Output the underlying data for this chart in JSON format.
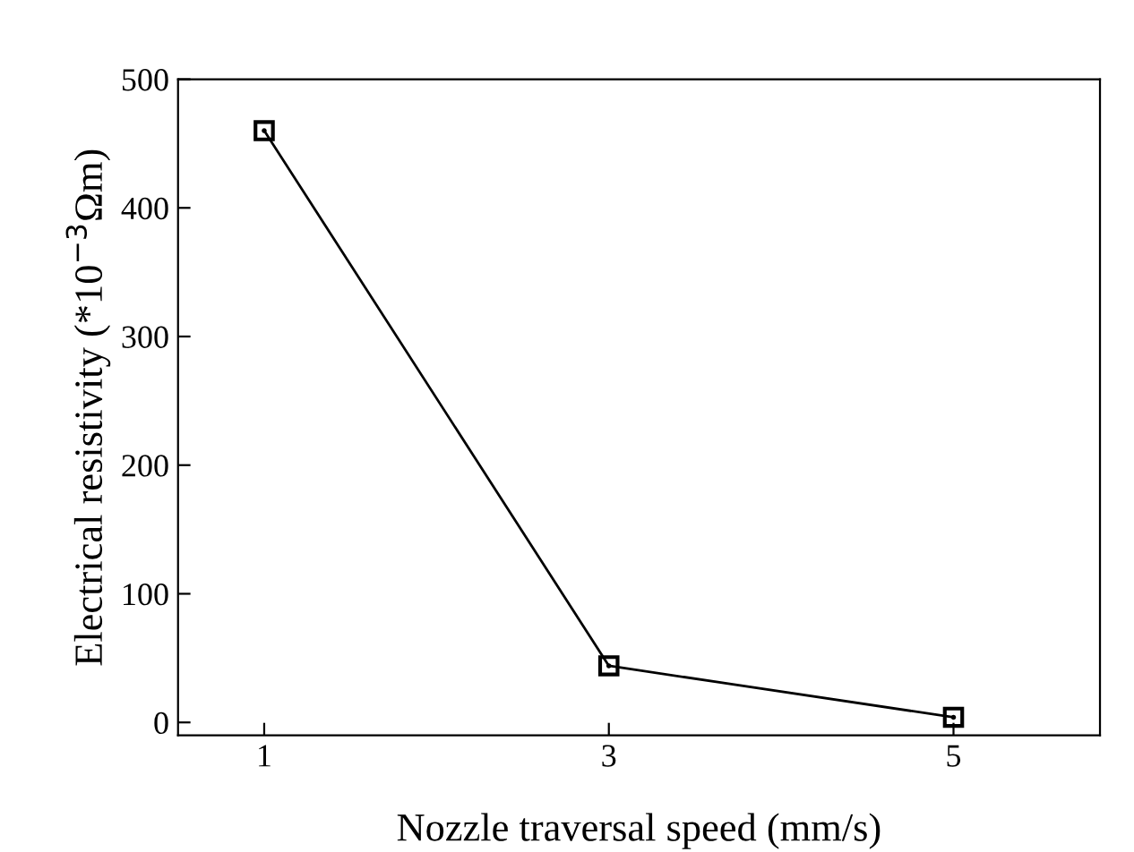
{
  "chart_data": {
    "type": "line",
    "xlabel": "Nozzle traversal speed (mm/s)",
    "ylabel": "Electrical resistivity (*10$^{−3}$Ωm)",
    "x": [
      1,
      3,
      5
    ],
    "series": [
      {
        "color": "#000000",
        "values": [
          460,
          44,
          4
        ]
      }
    ],
    "xlim": [
      0.5,
      5.85
    ],
    "xticks": [
      1,
      3,
      5
    ],
    "ylim": [
      -10,
      500
    ],
    "yticks": [
      0,
      100,
      200,
      300,
      400,
      500
    ],
    "marker": "square",
    "line_style": "solid",
    "grid": false,
    "legend": false
  }
}
